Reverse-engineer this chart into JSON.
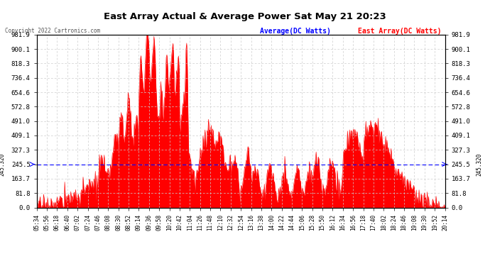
{
  "title": "East Array Actual & Average Power Sat May 21 20:23",
  "copyright": "Copyright 2022 Cartronics.com",
  "legend_avg": "Average(DC Watts)",
  "legend_east": "East Array(DC Watts)",
  "avg_value": 245.32,
  "ymax": 981.9,
  "ymin": 0.0,
  "yticks": [
    0.0,
    81.8,
    163.7,
    245.5,
    327.3,
    409.1,
    491.0,
    572.8,
    654.6,
    736.4,
    818.3,
    900.1,
    981.9
  ],
  "ytick_labels": [
    "0.0",
    "81.8",
    "163.7",
    "245.5",
    "327.3",
    "409.1",
    "491.0",
    "572.8",
    "654.6",
    "736.4",
    "818.3",
    "900.1",
    "981.9"
  ],
  "xtick_labels": [
    "05:34",
    "05:56",
    "06:18",
    "06:40",
    "07:02",
    "07:24",
    "07:46",
    "08:08",
    "08:30",
    "08:52",
    "09:14",
    "09:36",
    "09:58",
    "10:20",
    "10:42",
    "11:04",
    "11:26",
    "11:48",
    "12:10",
    "12:32",
    "12:54",
    "13:16",
    "13:38",
    "14:00",
    "14:22",
    "14:44",
    "15:06",
    "15:28",
    "15:50",
    "16:12",
    "16:34",
    "16:56",
    "17:18",
    "17:40",
    "18:02",
    "18:24",
    "18:46",
    "19:08",
    "19:30",
    "19:52",
    "20:14"
  ],
  "bg_color": "#ffffff",
  "grid_color": "#cccccc",
  "fill_color": "#ff0000",
  "avg_line_color": "#0000ff",
  "title_color": "#000000",
  "avg_annotation": "245.320",
  "copyright_color": "#555555",
  "avg_legend_color": "#0000ff",
  "east_legend_color": "#ff0000"
}
